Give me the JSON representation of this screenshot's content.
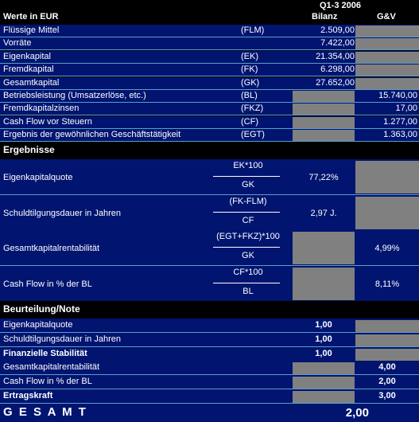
{
  "header": {
    "title": "Werte in EUR",
    "period": "Q1-3 2006",
    "col_bilanz": "Bilanz",
    "col_guv": "G&V"
  },
  "data_rows": [
    {
      "label": "Flüssige Mittel",
      "abbr": "(FLM)",
      "bilanz": "2.509,00",
      "guv": ""
    },
    {
      "label": "Vorräte",
      "abbr": "",
      "bilanz": "7.422,00",
      "guv": ""
    },
    {
      "label": "Eigenkapital",
      "abbr": "(EK)",
      "bilanz": "21.354,00",
      "guv": ""
    },
    {
      "label": "Fremdkapital",
      "abbr": "(FK)",
      "bilanz": "6.298,00",
      "guv": ""
    },
    {
      "label": "Gesamtkapital",
      "abbr": "(GK)",
      "bilanz": "27.652,00",
      "guv": ""
    },
    {
      "label": "Betriebsleistung (Umsatzerlöse, etc.)",
      "abbr": "(BL)",
      "bilanz": "",
      "guv": "15.740,00"
    },
    {
      "label": "Fremdkapitalzinsen",
      "abbr": "(FKZ)",
      "bilanz": "",
      "guv": "17,00"
    },
    {
      "label": "Cash Flow vor Steuern",
      "abbr": "(CF)",
      "bilanz": "",
      "guv": "1.277,00"
    },
    {
      "label": "Ergebnis der gewöhnlichen Geschäftstätigkeit",
      "abbr": "(EGT)",
      "bilanz": "",
      "guv": "1.363,00"
    }
  ],
  "ergebnisse": {
    "title": "Ergebnisse",
    "rows": [
      {
        "label": "Eigenkapitalquote",
        "numerator": "EK*100",
        "denominator": "GK",
        "bilanz": "77,22%",
        "guv": ""
      },
      {
        "label": "Schuldtilgungsdauer in Jahren",
        "numerator": "(FK-FLM)",
        "denominator": "CF",
        "bilanz": "2,97 J.",
        "guv": ""
      },
      {
        "label": "Gesamtkapitalrentabilität",
        "numerator": "(EGT+FKZ)*100",
        "denominator": "GK",
        "bilanz": "",
        "guv": "4,99%"
      },
      {
        "label": "Cash Flow in % der BL",
        "numerator": "CF*100",
        "denominator": "BL",
        "bilanz": "",
        "guv": "8,11%"
      }
    ]
  },
  "beurteilung": {
    "title": "Beurteilung/Note",
    "rows": [
      {
        "label": "Eigenkapitalquote",
        "bilanz": "1,00",
        "guv": "",
        "bold": false
      },
      {
        "label": "Schuldtilgungsdauer in Jahren",
        "bilanz": "1,00",
        "guv": "",
        "bold": false
      },
      {
        "label": "Finanzielle Stabilität",
        "bilanz": "1,00",
        "guv": "",
        "bold": true
      },
      {
        "label": "Gesamtkapitalrentabilität",
        "bilanz": "",
        "guv": "4,00",
        "bold": false
      },
      {
        "label": "Cash Flow in % der BL",
        "bilanz": "",
        "guv": "2,00",
        "bold": false
      },
      {
        "label": "Ertragskraft",
        "bilanz": "",
        "guv": "3,00",
        "bold": true
      }
    ]
  },
  "gesamt": {
    "label": "G E S A M T",
    "value": "2,00"
  },
  "colors": {
    "row_blue": "#001470",
    "gray_cell": "#808080",
    "grid_line": "#5aa0c8",
    "header_black": "#000000"
  }
}
